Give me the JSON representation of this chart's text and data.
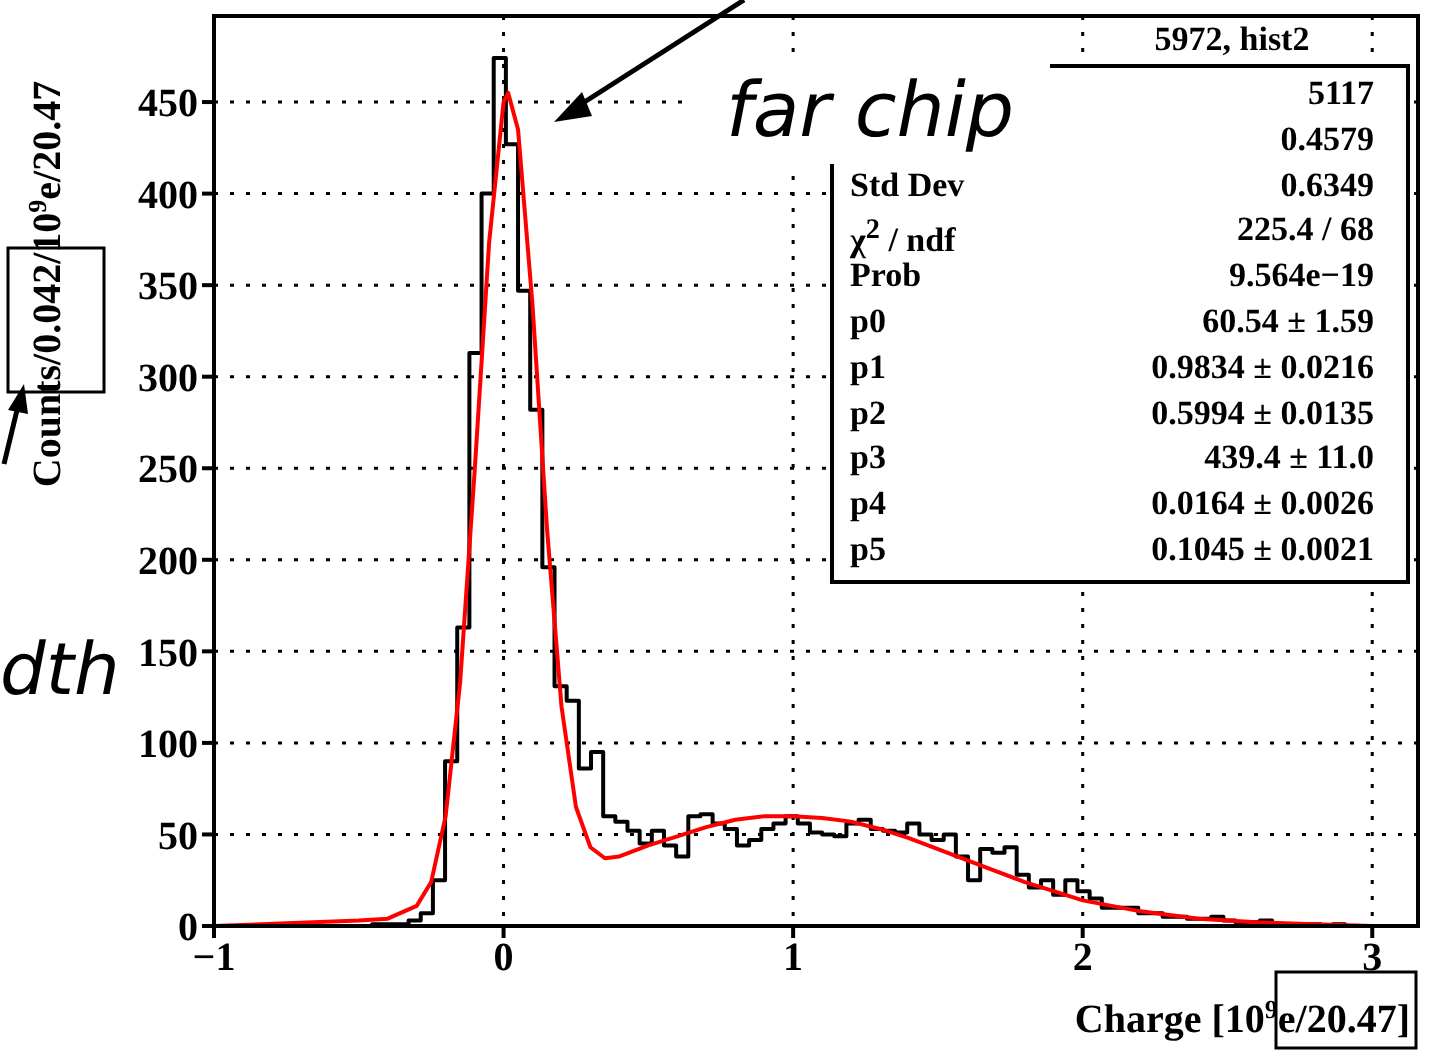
{
  "chart_data": {
    "type": "histogram",
    "xlabel": "Charge [10$^{9}$e/20.47]",
    "ylabel": "Counts/0.042/10$^{9}$e/20.47",
    "series": [
      {
        "color": "#000000",
        "bins": [
          -1,
          -0.958,
          -0.916,
          -0.874,
          -0.832,
          -0.79,
          -0.748,
          -0.706,
          -0.664,
          -0.622,
          -0.58,
          -0.538,
          -0.496,
          -0.454,
          -0.412,
          -0.37,
          -0.328,
          -0.286,
          -0.244,
          -0.202,
          -0.16,
          -0.118,
          -0.076,
          -0.034,
          0.008,
          0.05,
          0.092,
          0.134,
          0.176,
          0.218,
          0.26,
          0.302,
          0.344,
          0.386,
          0.428,
          0.47,
          0.512,
          0.554,
          0.596,
          0.638,
          0.68,
          0.722,
          0.764,
          0.806,
          0.848,
          0.89,
          0.932,
          0.974,
          1.016,
          1.058,
          1.1,
          1.142,
          1.184,
          1.226,
          1.268,
          1.31,
          1.352,
          1.394,
          1.436,
          1.478,
          1.52,
          1.562,
          1.604,
          1.646,
          1.688,
          1.73,
          1.772,
          1.814,
          1.856,
          1.898,
          1.94,
          1.982,
          2.024,
          2.066,
          2.108,
          2.15,
          2.192,
          2.234,
          2.276,
          2.318,
          2.36,
          2.402,
          2.444,
          2.486,
          2.528,
          2.57,
          2.612,
          2.654,
          2.696,
          2.738,
          2.78,
          2.822,
          2.864,
          2.906,
          2.948,
          2.99,
          3.032,
          3.074,
          3.116,
          3.158
        ],
        "values": [
          0,
          0,
          0,
          0,
          0,
          0,
          0,
          0,
          0,
          0,
          0,
          0,
          0,
          1,
          1,
          1,
          3,
          7,
          25,
          90,
          163,
          313,
          400,
          474,
          427,
          347,
          282,
          196,
          131,
          123,
          86,
          95,
          60,
          57,
          52,
          45,
          52,
          44,
          38,
          60,
          61,
          56,
          53,
          44,
          47,
          53,
          56,
          60,
          56,
          51,
          50,
          49,
          56,
          58,
          53,
          52,
          51,
          56,
          50,
          47,
          50,
          38,
          25,
          42,
          40,
          43,
          28,
          21,
          25,
          17,
          25,
          19,
          15,
          10,
          10,
          10,
          7,
          7,
          5,
          5,
          4,
          4,
          5,
          3,
          2,
          2,
          3,
          1,
          1,
          1,
          1,
          0,
          1,
          0,
          0,
          0,
          0,
          0,
          0
        ]
      },
      {
        "type": "line",
        "color": "#ff0000",
        "x": [
          -1,
          -0.5,
          -0.4,
          -0.3,
          -0.25,
          -0.2,
          -0.15,
          -0.1,
          -0.05,
          0,
          0.016,
          0.05,
          0.1,
          0.15,
          0.2,
          0.25,
          0.3,
          0.35,
          0.4,
          0.5,
          0.6,
          0.7,
          0.8,
          0.9,
          1,
          1.1,
          1.2,
          1.3,
          1.4,
          1.5,
          1.6,
          1.7,
          1.8,
          1.9,
          2,
          2.2,
          2.4,
          2.6,
          2.8,
          3
        ],
        "values": [
          0,
          3,
          4,
          11,
          24,
          60,
          133,
          248,
          373,
          450,
          455,
          435,
          339,
          217,
          120,
          65,
          43,
          37,
          38,
          44,
          49,
          54,
          58,
          60,
          60,
          59,
          57,
          53,
          48,
          42,
          36,
          30,
          24,
          19,
          14,
          8,
          4,
          2,
          1,
          0
        ]
      }
    ],
    "xlim": [
      -1,
      3.158
    ],
    "xticks": [
      {
        "value": -1,
        "label": "−1"
      },
      0,
      1,
      2,
      3
    ],
    "ylim": [
      0,
      497
    ],
    "yticks": [
      0,
      50,
      100,
      150,
      200,
      250,
      300,
      350,
      400,
      450
    ],
    "grid": true,
    "annotations": [
      "far chip",
      "dth",
      "5972, hist2",
      "  5117",
      "  0.4579",
      "Std Dev  0.6349",
      "χ$^{2}$ / ndf  225.4 / 68",
      "Prob  9.564e−19",
      "p0  60.54 ± 1.59",
      "p1  0.9834 ± 0.0216",
      "p2  0.5994 ± 0.0135",
      "p3  439.4 ± 11.0",
      "p4  0.0164 ± 0.0026",
      "p5  0.1045 ± 0.0021"
    ]
  }
}
